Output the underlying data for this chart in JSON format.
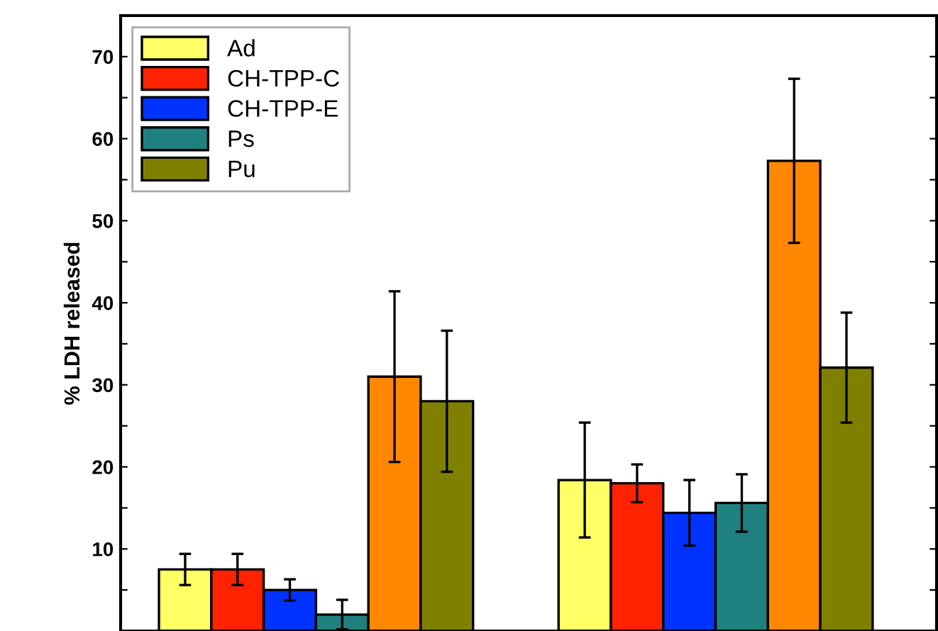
{
  "chart_data": {
    "type": "bar",
    "ylabel": "% LDH released",
    "categories": [
      null,
      null
    ],
    "series": [
      {
        "name": "Ad",
        "color": "#ffff66",
        "values": [
          7.5,
          18.4
        ],
        "errors": [
          1.9,
          7
        ]
      },
      {
        "name": "CH-TPP-C",
        "color": "#ff2200",
        "values": [
          7.5,
          18.0
        ],
        "errors": [
          1.9,
          2.3
        ]
      },
      {
        "name": "CH-TPP-E",
        "color": "#0033ff",
        "values": [
          5,
          14.4
        ],
        "errors": [
          1.3,
          4
        ]
      },
      {
        "name": "Ps",
        "color": "#1f8080",
        "values": [
          2,
          15.6
        ],
        "errors": [
          1.8,
          3.5
        ]
      },
      {
        "color": "#ff8800",
        "values": [
          31,
          57.3
        ],
        "errors": [
          10.4,
          10
        ]
      },
      {
        "name": "Pu",
        "color": "#808000",
        "values": [
          28,
          32.1
        ],
        "errors": [
          8.6,
          6.7
        ]
      }
    ],
    "ylim": [
      0,
      75
    ],
    "yticks": [
      {
        "value": 5,
        "label": null
      },
      10,
      {
        "value": 15,
        "label": null
      },
      20,
      {
        "value": 25,
        "label": null
      },
      30,
      {
        "value": 35,
        "label": null
      },
      40,
      {
        "value": 45,
        "label": null
      },
      50,
      {
        "value": 55,
        "label": null
      },
      60,
      {
        "value": 65,
        "label": null
      },
      70
    ],
    "tick_labels": "y",
    "legend": "top left",
    "grid": false
  }
}
